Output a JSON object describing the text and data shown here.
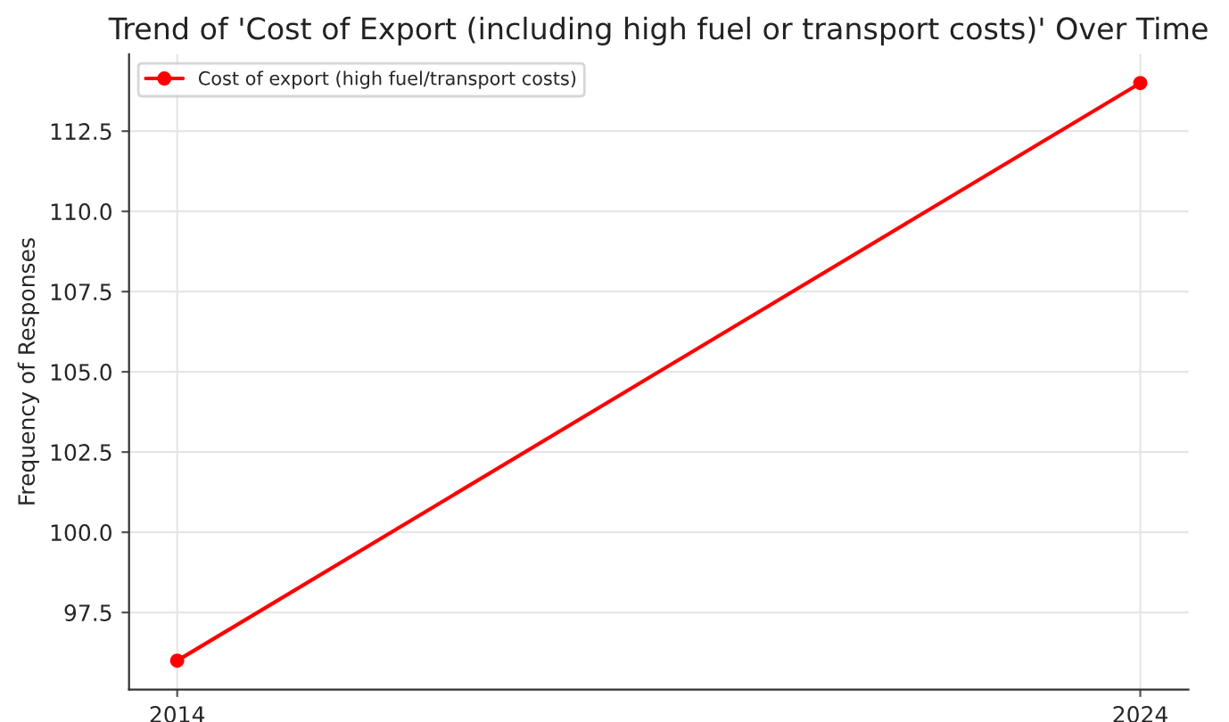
{
  "chart_data": {
    "type": "line",
    "title": "Trend of 'Cost of Export (including high fuel or transport costs)' Over Time",
    "ylabel": "Frequency of Responses",
    "x": [
      2014,
      2024
    ],
    "series": [
      {
        "name": "Cost of export (high fuel/transport costs)",
        "color": "#ff0000",
        "values": [
          96,
          114
        ]
      }
    ],
    "xlim": [
      2013.5,
      2024.5
    ],
    "xticks": [
      2014,
      2024
    ],
    "ylim": [
      95.1,
      114.9
    ],
    "yticks": [
      97.5,
      {
        "value": 100,
        "label": "100.0"
      },
      102.5,
      {
        "value": 105,
        "label": "105.0"
      },
      107.5,
      {
        "value": 110,
        "label": "110.0"
      },
      112.5
    ],
    "grid": true,
    "legend": "top left",
    "marker": "circle",
    "line_style": "solid"
  }
}
